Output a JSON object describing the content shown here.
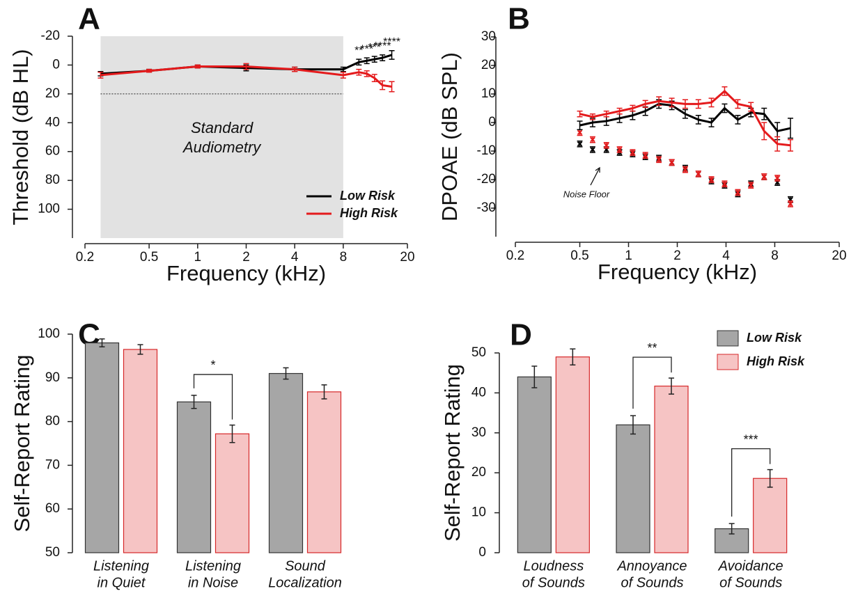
{
  "chart_data": [
    {
      "type": "line",
      "panel_label": "A",
      "x_label": "Frequency (kHz)",
      "y_label": "Threshold (dB HL)",
      "log_x": true,
      "xlim": [
        0.2,
        20
      ],
      "xticks": [
        0.2,
        0.5,
        1,
        2,
        4,
        8,
        20
      ],
      "ylim": [
        120,
        -20
      ],
      "yticks": [
        -20,
        0,
        20,
        40,
        60,
        80,
        100
      ],
      "x": [
        0.25,
        0.5,
        1,
        2,
        4,
        8,
        10,
        11.2,
        12.5,
        14,
        16
      ],
      "series": [
        {
          "name": "Low Risk",
          "color": "#000000",
          "values": [
            6,
            4,
            1,
            2,
            3,
            3,
            -2,
            -3,
            -4,
            -5,
            -7
          ],
          "errors": [
            1.5,
            1,
            1,
            2,
            1.5,
            1.5,
            2,
            2,
            2,
            2,
            3
          ]
        },
        {
          "name": "High Risk",
          "color": "#e41a1c",
          "values": [
            7,
            4,
            1,
            1,
            3,
            7,
            5,
            6,
            9,
            14,
            15
          ],
          "errors": [
            2,
            1,
            1,
            2,
            1.5,
            2,
            2,
            2,
            2.5,
            3,
            3.5
          ]
        }
      ],
      "significance": [
        null,
        null,
        null,
        null,
        null,
        null,
        "**",
        "***",
        "***",
        "****",
        "****"
      ],
      "shaded_region": [
        0.25,
        8
      ],
      "shaded_label": [
        "Standard",
        "Audiometry"
      ],
      "reference_line": 20,
      "legend": "lower right"
    },
    {
      "type": "line",
      "panel_label": "B",
      "x_label": "Frequency (kHz)",
      "y_label": "DPOAE (dB SPL)",
      "log_x": true,
      "xlim": [
        0.2,
        20
      ],
      "xticks": [
        0.2,
        0.5,
        1,
        2,
        4,
        8,
        20
      ],
      "ylim": [
        -40,
        30
      ],
      "yticks": [
        -30,
        -20,
        -10,
        0,
        10,
        20,
        30
      ],
      "x": [
        0.5,
        0.6,
        0.73,
        0.88,
        1.06,
        1.27,
        1.54,
        1.85,
        2.24,
        2.7,
        3.25,
        3.92,
        4.73,
        5.7,
        6.88,
        8.3,
        10
      ],
      "series": [
        {
          "color": "#000000",
          "values": [
            -1,
            0,
            0.5,
            1.5,
            2.5,
            4,
            6.5,
            6,
            3,
            1,
            0,
            5,
            1,
            3.5,
            3,
            -3,
            -2
          ],
          "errors": [
            1.5,
            1.5,
            1.5,
            1.5,
            1.5,
            1.5,
            1.5,
            1.5,
            1.5,
            1.5,
            1.5,
            1.5,
            1.5,
            1.5,
            2,
            3,
            3.5
          ]
        },
        {
          "color": "#e41a1c",
          "values": [
            3,
            2,
            3,
            4,
            5,
            6.5,
            7.5,
            7,
            6.5,
            6.5,
            7,
            11,
            6.5,
            5.5,
            -3,
            -7.5,
            -8
          ],
          "errors": [
            1,
            1,
            1,
            1,
            1,
            1.2,
            1.5,
            1.5,
            1.5,
            1.5,
            1.5,
            1.5,
            1.5,
            1.5,
            3,
            2.5,
            2
          ]
        }
      ],
      "noise_floor": [
        {
          "color": "#000000",
          "values": [
            -7.5,
            -9.5,
            -9.5,
            -10.5,
            -11,
            -12,
            -12.5,
            -14,
            -16,
            -18,
            -20.5,
            -22,
            -25,
            -21.5,
            -19,
            -21,
            -27
          ],
          "errors": [
            1,
            1,
            1,
            1,
            1,
            1,
            1,
            1,
            1,
            1,
            1,
            1,
            1,
            1,
            1,
            1,
            1
          ]
        },
        {
          "color": "#e41a1c",
          "values": [
            -3.5,
            -6,
            -8,
            -9.5,
            -10.5,
            -11.5,
            -13,
            -14,
            -16.5,
            -18,
            -20,
            -21.5,
            -24.5,
            -22,
            -19,
            -19.5,
            -28.5
          ],
          "errors": [
            1,
            1,
            1,
            1,
            1,
            1,
            1,
            1,
            1,
            1,
            1,
            1,
            1,
            1,
            1,
            1,
            1
          ]
        }
      ],
      "annotation": "Noise Floor"
    },
    {
      "type": "bar",
      "panel_label": "C",
      "y_label": "Self-Report Rating",
      "categories": [
        [
          "Listening",
          "in Quiet"
        ],
        [
          "Listening",
          "in Noise"
        ],
        [
          "Sound",
          "Localization"
        ]
      ],
      "ylim": [
        50,
        100
      ],
      "yticks": [
        50,
        60,
        70,
        80,
        90,
        100
      ],
      "series": [
        {
          "name": "Low Risk",
          "color": "#a6a6a6",
          "edge": "#333333",
          "values": [
            98,
            84.5,
            91
          ],
          "errors": [
            0.9,
            1.5,
            1.3
          ]
        },
        {
          "name": "High Risk",
          "color": "#f6c4c4",
          "edge": "#d62728",
          "values": [
            96.5,
            77.2,
            86.8
          ],
          "errors": [
            1.1,
            2,
            1.6
          ]
        }
      ],
      "significance": [
        null,
        "*",
        null
      ]
    },
    {
      "type": "bar",
      "panel_label": "D",
      "y_label": "Self-Report Rating",
      "categories": [
        [
          "Loudness",
          "of Sounds"
        ],
        [
          "Annoyance",
          "of Sounds"
        ],
        [
          "Avoidance",
          "of Sounds"
        ]
      ],
      "ylim": [
        0,
        50
      ],
      "yticks": [
        0,
        10,
        20,
        30,
        40,
        50
      ],
      "series": [
        {
          "name": "Low Risk",
          "color": "#a6a6a6",
          "edge": "#333333",
          "values": [
            44,
            32,
            6
          ],
          "errors": [
            2.7,
            2.3,
            1.3
          ]
        },
        {
          "name": "High Risk",
          "color": "#f6c4c4",
          "edge": "#d62728",
          "values": [
            49,
            41.7,
            18.6
          ],
          "errors": [
            2,
            2,
            2.2
          ]
        }
      ],
      "significance": [
        null,
        "**",
        "***"
      ],
      "legend": "upper right"
    }
  ]
}
